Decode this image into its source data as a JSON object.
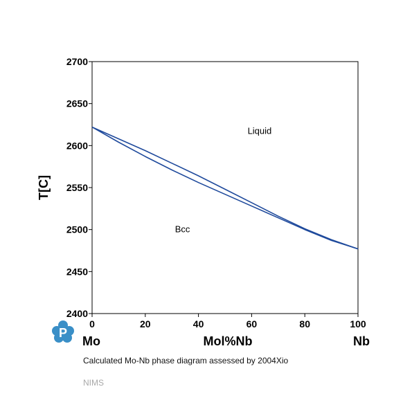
{
  "chart_data": {
    "type": "line",
    "title": "",
    "ylabel": "T[C]",
    "xlabel": "Mol%Nb",
    "x_left_element": "Mo",
    "x_right_element": "Nb",
    "xlim": [
      0,
      100
    ],
    "ylim": [
      2400,
      2700
    ],
    "x_ticks": [
      0,
      20,
      40,
      60,
      80,
      100
    ],
    "y_ticks": [
      2400,
      2450,
      2500,
      2550,
      2600,
      2650,
      2700
    ],
    "grid": false,
    "line_color": "#1f4a9c",
    "series": [
      {
        "name": "",
        "x": [
          0,
          10,
          20,
          30,
          40,
          50,
          60,
          70,
          80,
          90,
          100
        ],
        "y": [
          2622,
          2608,
          2594,
          2579,
          2564,
          2548,
          2532,
          2516,
          2501,
          2488,
          2477
        ]
      },
      {
        "name": "",
        "x": [
          0,
          10,
          20,
          30,
          40,
          50,
          60,
          70,
          80,
          90,
          100
        ],
        "y": [
          2622,
          2604,
          2587,
          2571,
          2556,
          2542,
          2528,
          2514,
          2500,
          2487,
          2477
        ]
      }
    ],
    "annotations": [
      {
        "text": "Liquid",
        "x": 63,
        "y": 2617
      },
      {
        "text": "Bcc",
        "x": 34,
        "y": 2500
      }
    ]
  },
  "caption": {
    "prefix": "Calculated Mo-Nb phase diagram assessed by ",
    "reference": "2004Xio"
  },
  "source": "NIMS",
  "logo": {
    "letter": "P",
    "color": "#3a8fc7"
  }
}
